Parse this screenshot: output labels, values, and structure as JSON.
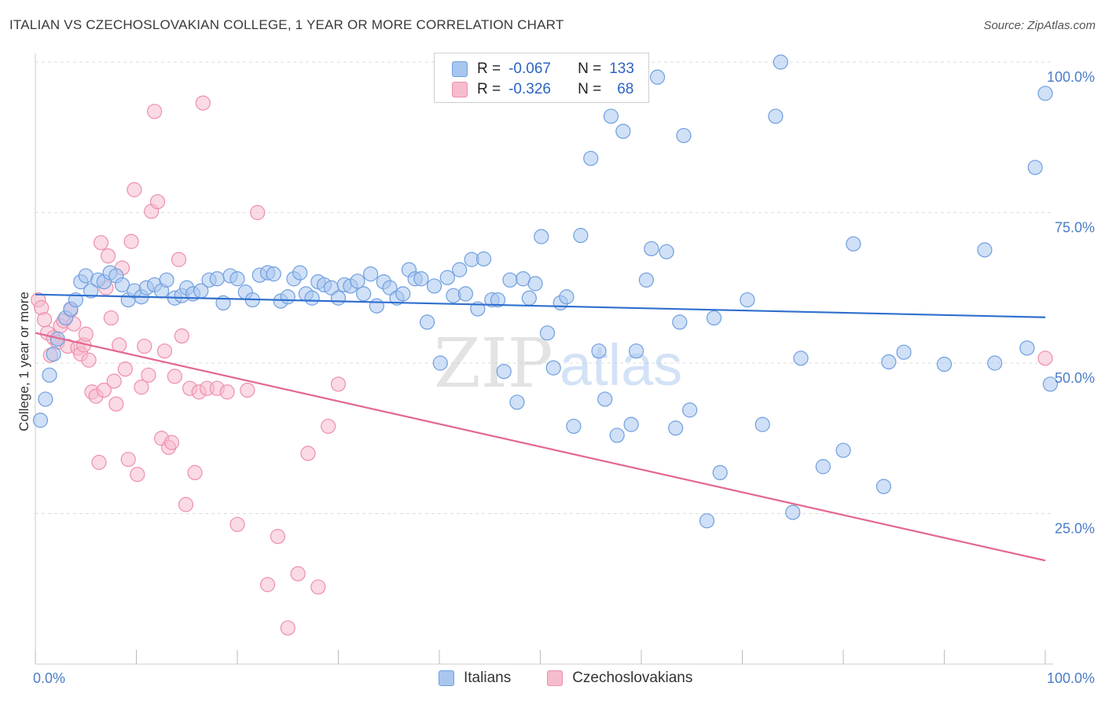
{
  "header": {
    "title": "ITALIAN VS CZECHOSLOVAKIAN COLLEGE, 1 YEAR OR MORE CORRELATION CHART",
    "source": "Source: ZipAtlas.com"
  },
  "legend": {
    "italians": {
      "r_label": "R =",
      "r_value": "-0.067",
      "n_label": "N =",
      "n_value": "133"
    },
    "czech": {
      "r_label": "R =",
      "r_value": "-0.326",
      "n_label": "N =",
      "n_value": "68"
    }
  },
  "colors": {
    "italians_fill": "#a9c6ee",
    "italians_stroke": "#6f9fe0",
    "italians_line": "#2f6fce",
    "czech_fill": "#f6bccd",
    "czech_stroke": "#ee8fab",
    "czech_line": "#e2688f",
    "tick_text": "#4a7cc7",
    "grid": "#dddddd"
  },
  "chart_data": {
    "type": "scatter",
    "title": "ITALIAN VS CZECHOSLOVAKIAN COLLEGE, 1 YEAR OR MORE CORRELATION CHART",
    "xlabel": "",
    "ylabel": "College, 1 year or more",
    "xlim": [
      0,
      100
    ],
    "ylim": [
      0,
      100
    ],
    "x_tick_labels": [
      "0.0%",
      "100.0%"
    ],
    "y_tick_values": [
      25,
      50,
      75,
      100
    ],
    "y_tick_labels": [
      "25.0%",
      "50.0%",
      "75.0%",
      "100.0%"
    ],
    "grid": true,
    "legend_position": "bottom-center",
    "watermark": "ZIPatlas",
    "series": [
      {
        "name": "Italians",
        "r": -0.067,
        "n": 133,
        "trend": {
          "x": [
            0,
            100
          ],
          "y": [
            61.4,
            57.6
          ]
        },
        "points": [
          [
            0.5,
            40.5
          ],
          [
            1.0,
            44
          ],
          [
            1.4,
            48
          ],
          [
            1.8,
            51.5
          ],
          [
            2.2,
            54
          ],
          [
            3.0,
            57.5
          ],
          [
            3.5,
            59
          ],
          [
            4.0,
            60.5
          ],
          [
            4.5,
            63.5
          ],
          [
            5.0,
            64.5
          ],
          [
            5.5,
            62
          ],
          [
            6.2,
            63.8
          ],
          [
            6.8,
            63.5
          ],
          [
            7.4,
            65
          ],
          [
            8.0,
            64.5
          ],
          [
            8.6,
            63
          ],
          [
            9.2,
            60.5
          ],
          [
            9.8,
            62
          ],
          [
            10.5,
            61
          ],
          [
            11.0,
            62.5
          ],
          [
            11.8,
            63
          ],
          [
            12.5,
            62
          ],
          [
            13.0,
            63.8
          ],
          [
            13.8,
            60.8
          ],
          [
            14.5,
            61.2
          ],
          [
            15.0,
            62.5
          ],
          [
            15.6,
            61.5
          ],
          [
            16.4,
            62
          ],
          [
            17.2,
            63.8
          ],
          [
            18.0,
            64
          ],
          [
            18.6,
            60
          ],
          [
            19.3,
            64.5
          ],
          [
            20.0,
            64
          ],
          [
            20.8,
            61.8
          ],
          [
            21.5,
            60.5
          ],
          [
            22.2,
            64.6
          ],
          [
            23.0,
            65
          ],
          [
            23.6,
            64.8
          ],
          [
            24.3,
            60.3
          ],
          [
            25.0,
            61
          ],
          [
            25.6,
            64
          ],
          [
            26.2,
            65
          ],
          [
            26.8,
            61.5
          ],
          [
            27.4,
            60.8
          ],
          [
            28.0,
            63.5
          ],
          [
            28.6,
            63
          ],
          [
            29.3,
            62.5
          ],
          [
            30.0,
            60.8
          ],
          [
            30.6,
            63
          ],
          [
            31.2,
            62.8
          ],
          [
            31.9,
            63.6
          ],
          [
            32.5,
            61.5
          ],
          [
            33.2,
            64.8
          ],
          [
            33.8,
            59.5
          ],
          [
            34.5,
            63.5
          ],
          [
            35.1,
            62.5
          ],
          [
            35.8,
            60.8
          ],
          [
            36.4,
            61.5
          ],
          [
            37.0,
            65.5
          ],
          [
            37.6,
            64
          ],
          [
            38.2,
            64
          ],
          [
            38.8,
            56.8
          ],
          [
            39.5,
            62.8
          ],
          [
            40.1,
            50
          ],
          [
            40.8,
            64.2
          ],
          [
            41.4,
            61.2
          ],
          [
            42.0,
            65.5
          ],
          [
            42.6,
            61.5
          ],
          [
            43.2,
            67.2
          ],
          [
            43.8,
            59
          ],
          [
            44.4,
            67.3
          ],
          [
            45.2,
            60.5
          ],
          [
            45.8,
            60.5
          ],
          [
            46.4,
            48.6
          ],
          [
            47.0,
            63.8
          ],
          [
            47.7,
            43.5
          ],
          [
            48.3,
            64
          ],
          [
            48.9,
            60.8
          ],
          [
            49.5,
            63.2
          ],
          [
            50.1,
            71
          ],
          [
            50.7,
            55
          ],
          [
            51.3,
            49.2
          ],
          [
            52.0,
            60
          ],
          [
            52.6,
            61
          ],
          [
            53.3,
            39.5
          ],
          [
            54.0,
            71.2
          ],
          [
            55.0,
            84
          ],
          [
            55.8,
            52
          ],
          [
            56.4,
            44
          ],
          [
            57.0,
            91
          ],
          [
            57.6,
            38
          ],
          [
            58.2,
            88.5
          ],
          [
            59.0,
            39.8
          ],
          [
            59.5,
            52
          ],
          [
            60.5,
            63.8
          ],
          [
            61.0,
            69
          ],
          [
            61.6,
            97.5
          ],
          [
            62.5,
            68.5
          ],
          [
            63.4,
            39.2
          ],
          [
            63.8,
            56.8
          ],
          [
            64.2,
            87.8
          ],
          [
            64.8,
            42.2
          ],
          [
            66.5,
            23.8
          ],
          [
            67.2,
            57.5
          ],
          [
            67.8,
            31.8
          ],
          [
            70.5,
            60.5
          ],
          [
            72.0,
            39.8
          ],
          [
            73.3,
            91
          ],
          [
            73.8,
            100
          ],
          [
            75.0,
            25.2
          ],
          [
            75.8,
            50.8
          ],
          [
            78.0,
            32.8
          ],
          [
            81.0,
            69.8
          ],
          [
            80.0,
            35.5
          ],
          [
            84.0,
            29.5
          ],
          [
            84.5,
            50.2
          ],
          [
            86.0,
            51.8
          ],
          [
            90.0,
            49.8
          ],
          [
            94.0,
            68.8
          ],
          [
            95.0,
            50
          ],
          [
            98.2,
            52.5
          ],
          [
            99.0,
            82.5
          ],
          [
            100.5,
            46.5
          ],
          [
            100.0,
            94.8
          ]
        ]
      },
      {
        "name": "Czechoslovakians",
        "r": -0.326,
        "n": 68,
        "trend": {
          "x": [
            0,
            100
          ],
          "y": [
            55.0,
            17.2
          ]
        },
        "points": [
          [
            0.3,
            60.5
          ],
          [
            0.6,
            59.2
          ],
          [
            0.9,
            57.2
          ],
          [
            1.2,
            55
          ],
          [
            1.5,
            51.3
          ],
          [
            1.8,
            54.2
          ],
          [
            2.2,
            53.5
          ],
          [
            2.5,
            56.2
          ],
          [
            2.8,
            57
          ],
          [
            3.2,
            52.8
          ],
          [
            3.5,
            58.8
          ],
          [
            3.8,
            56.5
          ],
          [
            4.2,
            52.5
          ],
          [
            4.5,
            51.5
          ],
          [
            4.8,
            53
          ],
          [
            5.0,
            54.8
          ],
          [
            5.3,
            50.5
          ],
          [
            5.6,
            45.2
          ],
          [
            6.0,
            44.5
          ],
          [
            6.3,
            33.5
          ],
          [
            6.5,
            70
          ],
          [
            6.8,
            45.5
          ],
          [
            7.0,
            62.5
          ],
          [
            7.2,
            67.8
          ],
          [
            7.5,
            57.5
          ],
          [
            7.8,
            47
          ],
          [
            8.0,
            43.2
          ],
          [
            8.3,
            53
          ],
          [
            8.6,
            65.8
          ],
          [
            8.9,
            49
          ],
          [
            9.2,
            34
          ],
          [
            9.5,
            70.2
          ],
          [
            9.8,
            78.8
          ],
          [
            10.1,
            31.5
          ],
          [
            10.5,
            46
          ],
          [
            10.8,
            52.8
          ],
          [
            11.2,
            48
          ],
          [
            11.5,
            75.2
          ],
          [
            11.8,
            91.8
          ],
          [
            12.1,
            76.8
          ],
          [
            12.5,
            37.5
          ],
          [
            12.8,
            52
          ],
          [
            13.2,
            36
          ],
          [
            13.5,
            36.8
          ],
          [
            13.8,
            47.8
          ],
          [
            14.2,
            67.2
          ],
          [
            14.5,
            54.5
          ],
          [
            14.9,
            26.5
          ],
          [
            15.3,
            45.8
          ],
          [
            15.8,
            31.8
          ],
          [
            16.2,
            45.2
          ],
          [
            16.6,
            93.2
          ],
          [
            17.0,
            45.8
          ],
          [
            18.0,
            45.8
          ],
          [
            19.0,
            45.2
          ],
          [
            20.0,
            23.2
          ],
          [
            21.0,
            45.5
          ],
          [
            22.0,
            75
          ],
          [
            23.0,
            13.2
          ],
          [
            24.0,
            21.2
          ],
          [
            25.0,
            6
          ],
          [
            26.0,
            15
          ],
          [
            27.0,
            35
          ],
          [
            28.0,
            12.8
          ],
          [
            29.0,
            39.5
          ],
          [
            30.0,
            46.5
          ],
          [
            100.0,
            50.8
          ]
        ]
      }
    ]
  },
  "bottom_legend": {
    "italians": "Italians",
    "czech": "Czechoslovakians"
  }
}
